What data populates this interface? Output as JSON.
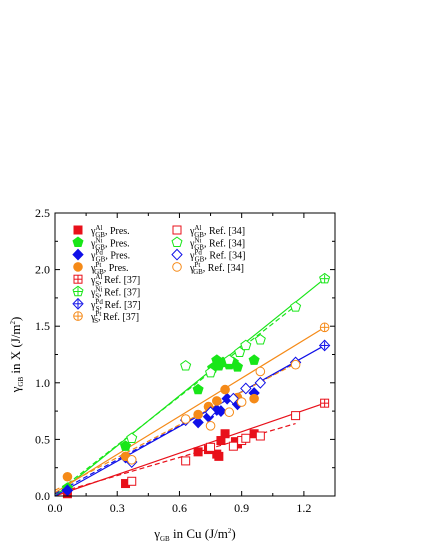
{
  "chart_data": {
    "type": "scatter",
    "xlabel": "γGB in Cu (J/m2)",
    "ylabel": "γGB in X (J/m2)",
    "xlim": [
      0.0,
      1.35
    ],
    "ylim": [
      0.0,
      2.5
    ],
    "x_ticks": [
      "0.0",
      "0.3",
      "0.6",
      "0.9",
      "1.2"
    ],
    "y_ticks": [
      "0.0",
      "0.5",
      "1.0",
      "1.5",
      "2.0",
      "2.5"
    ],
    "grid": false,
    "legend_position": "top-left",
    "colors": {
      "Al": "#e8101a",
      "Ni": "#19e619",
      "Pd": "#1010e8",
      "Pt": "#f58a18"
    },
    "series": [
      {
        "name": "γGB^Al, Pres.",
        "element": "Al",
        "marker": "square-filled",
        "points": [
          [
            0.06,
            0.02
          ],
          [
            0.34,
            0.11
          ],
          [
            0.69,
            0.39
          ],
          [
            0.74,
            0.41
          ],
          [
            0.78,
            0.37
          ],
          [
            0.79,
            0.35
          ],
          [
            0.8,
            0.49
          ],
          [
            0.82,
            0.55
          ],
          [
            0.87,
            0.48
          ],
          [
            0.88,
            0.46
          ],
          [
            0.96,
            0.55
          ]
        ]
      },
      {
        "name": "γGB^Ni, Pres.",
        "element": "Ni",
        "marker": "pentagon-filled",
        "points": [
          [
            0.06,
            0.07
          ],
          [
            0.34,
            0.44
          ],
          [
            0.69,
            0.94
          ],
          [
            0.76,
            1.13
          ],
          [
            0.78,
            1.2
          ],
          [
            0.79,
            1.15
          ],
          [
            0.81,
            1.18
          ],
          [
            0.84,
            1.16
          ],
          [
            0.86,
            1.18
          ],
          [
            0.88,
            1.14
          ],
          [
            0.96,
            1.2
          ]
        ]
      },
      {
        "name": "γGB^Pd, Pres.",
        "element": "Pd",
        "marker": "diamond-filled",
        "points": [
          [
            0.06,
            0.05
          ],
          [
            0.34,
            0.34
          ],
          [
            0.69,
            0.65
          ],
          [
            0.74,
            0.7
          ],
          [
            0.78,
            0.76
          ],
          [
            0.8,
            0.75
          ],
          [
            0.83,
            0.86
          ],
          [
            0.88,
            0.81
          ],
          [
            0.96,
            0.91
          ]
        ]
      },
      {
        "name": "γGB^Pt, Pres.",
        "element": "Pt",
        "marker": "circle-filled",
        "points": [
          [
            0.06,
            0.17
          ],
          [
            0.34,
            0.35
          ],
          [
            0.69,
            0.72
          ],
          [
            0.74,
            0.79
          ],
          [
            0.78,
            0.84
          ],
          [
            0.82,
            0.94
          ],
          [
            0.88,
            0.87
          ],
          [
            0.96,
            0.86
          ]
        ]
      },
      {
        "name": "γS^Al, Ref. [37]",
        "element": "Al",
        "marker": "square-plus",
        "points": [
          [
            1.3,
            0.82
          ]
        ]
      },
      {
        "name": "γS^Ni, Ref. [37]",
        "element": "Ni",
        "marker": "pentagon-plus",
        "points": [
          [
            1.3,
            1.92
          ]
        ]
      },
      {
        "name": "γS^Pd, Ref. [37]",
        "element": "Pd",
        "marker": "diamond-plus",
        "points": [
          [
            1.3,
            1.33
          ]
        ]
      },
      {
        "name": "γS^Pt, Ref. [37]",
        "element": "Pt",
        "marker": "circle-plus",
        "points": [
          [
            1.3,
            1.49
          ]
        ]
      },
      {
        "name": "γGB^Al, Ref. [34]",
        "element": "Al",
        "marker": "square-open",
        "points": [
          [
            0.37,
            0.13
          ],
          [
            0.63,
            0.31
          ],
          [
            0.75,
            0.43
          ],
          [
            0.86,
            0.44
          ],
          [
            0.9,
            0.49
          ],
          [
            0.92,
            0.51
          ],
          [
            0.99,
            0.53
          ],
          [
            1.16,
            0.71
          ]
        ]
      },
      {
        "name": "γGB^Ni, Ref. [34]",
        "element": "Ni",
        "marker": "pentagon-open",
        "points": [
          [
            0.37,
            0.51
          ],
          [
            0.63,
            1.15
          ],
          [
            0.75,
            1.09
          ],
          [
            0.84,
            1.2
          ],
          [
            0.89,
            1.27
          ],
          [
            0.92,
            1.33
          ],
          [
            0.99,
            1.38
          ],
          [
            1.16,
            1.67
          ]
        ]
      },
      {
        "name": "γGB^Pd, Ref. [34]",
        "element": "Pd",
        "marker": "diamond-open",
        "points": [
          [
            0.37,
            0.3
          ],
          [
            0.63,
            0.67
          ],
          [
            0.75,
            0.74
          ],
          [
            0.86,
            0.86
          ],
          [
            0.92,
            0.95
          ],
          [
            0.99,
            1.0
          ],
          [
            1.16,
            1.18
          ]
        ]
      },
      {
        "name": "γGB^Pt, Ref. [34]",
        "element": "Pt",
        "marker": "circle-open",
        "points": [
          [
            0.37,
            0.32
          ],
          [
            0.63,
            0.68
          ],
          [
            0.75,
            0.62
          ],
          [
            0.84,
            0.74
          ],
          [
            0.9,
            0.83
          ],
          [
            0.99,
            1.1
          ],
          [
            1.16,
            1.16
          ]
        ]
      }
    ],
    "fit_lines": [
      {
        "element": "Al",
        "style": "solid",
        "from": [
          0.0,
          0.0
        ],
        "to": [
          1.3,
          0.82
        ]
      },
      {
        "element": "Al",
        "style": "dashed",
        "from": [
          0.0,
          0.02
        ],
        "to": [
          1.16,
          0.64
        ]
      },
      {
        "element": "Ni",
        "style": "solid",
        "from": [
          0.0,
          0.0
        ],
        "to": [
          1.3,
          1.92
        ]
      },
      {
        "element": "Ni",
        "style": "dashed",
        "from": [
          0.0,
          0.02
        ],
        "to": [
          1.16,
          1.68
        ]
      },
      {
        "element": "Pd",
        "style": "solid",
        "from": [
          0.0,
          0.0
        ],
        "to": [
          1.3,
          1.33
        ]
      },
      {
        "element": "Pd",
        "style": "dashed",
        "from": [
          0.0,
          0.02
        ],
        "to": [
          1.16,
          1.18
        ]
      },
      {
        "element": "Pt",
        "style": "solid",
        "from": [
          0.0,
          0.03
        ],
        "to": [
          1.3,
          1.49
        ]
      },
      {
        "element": "Pt",
        "style": "dashed",
        "from": [
          0.0,
          0.05
        ],
        "to": [
          1.16,
          1.17
        ]
      }
    ]
  },
  "legend": [
    {
      "main": "γ",
      "sub": "GB",
      "sup": "Al",
      "suffix": ", Pres."
    },
    {
      "main": "γ",
      "sub": "GB",
      "sup": "Ni",
      "suffix": ", Pres."
    },
    {
      "main": "γ",
      "sub": "GB",
      "sup": "Pd",
      "suffix": ", Pres."
    },
    {
      "main": "γ",
      "sub": "GB",
      "sup": "Pt",
      "suffix": ", Pres."
    },
    {
      "main": "γ",
      "sub": "S",
      "sup": "Al",
      "suffix": ", Ref. [37]"
    },
    {
      "main": "γ",
      "sub": "S",
      "sup": "Ni",
      "suffix": ", Ref. [37]"
    },
    {
      "main": "γ",
      "sub": "S",
      "sup": "Pd",
      "suffix": ", Ref. [37]"
    },
    {
      "main": "γ",
      "sub": "S",
      "sup": "Pt",
      "suffix": ", Ref. [37]"
    },
    {
      "main": "γ",
      "sub": "GB",
      "sup": "Al",
      "suffix": ", Ref. [34]"
    },
    {
      "main": "γ",
      "sub": "GB",
      "sup": "Ni",
      "suffix": ", Ref. [34]"
    },
    {
      "main": "γ",
      "sub": "GB",
      "sup": "Pd",
      "suffix": ", Ref. [34]"
    },
    {
      "main": "γ",
      "sub": "GB",
      "sup": "Pt",
      "suffix": ", Ref. [34]"
    }
  ],
  "axis_titles": {
    "x": {
      "main": "γ",
      "sub": "GB",
      "text": " in Cu (J/m",
      "sup": "2",
      "end": ")"
    },
    "y": {
      "main": "γ",
      "sub": "GB",
      "text": " in X (J/m",
      "sup": "2",
      "end": ")"
    }
  }
}
